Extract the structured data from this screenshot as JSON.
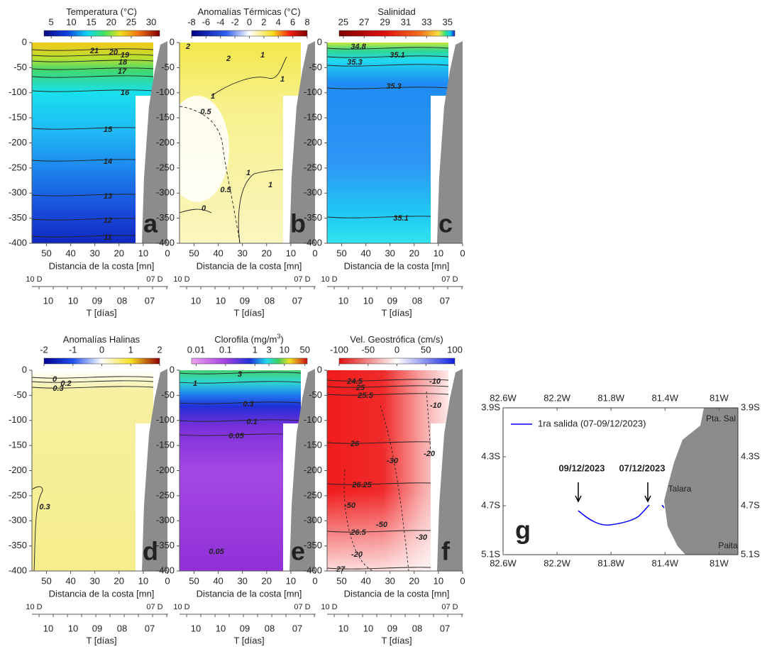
{
  "chart_data": [
    {
      "type": "contour",
      "letter": "a",
      "title": "Temperatura (°C)",
      "colorbar_ticks": [
        5,
        10,
        15,
        20,
        25,
        30
      ],
      "colorbar_lim": [
        3.2,
        32.1
      ],
      "contour_labels": [
        21,
        20,
        19,
        18,
        17,
        16,
        15,
        14,
        13,
        12,
        11
      ],
      "yticks": [
        0,
        -50,
        -100,
        -150,
        -200,
        -250,
        -300,
        -350,
        -400
      ],
      "ylim": [
        -400,
        0
      ],
      "xticks": [
        50,
        40,
        30,
        20,
        10,
        0
      ],
      "xlim": [
        56,
        0
      ],
      "xlabel": "Distancia de la costa [mn]",
      "time_start": "10 D",
      "time_end": "07 D",
      "time_ticks": [
        "10",
        "10",
        "09",
        "08",
        "07"
      ],
      "time_label": "T [días]"
    },
    {
      "type": "contour",
      "letter": "b",
      "title": "Anomalías Térmicas (°C)",
      "colorbar_ticks": [
        -8,
        -6,
        -4,
        -2,
        0,
        2,
        4,
        6,
        8
      ],
      "colorbar_lim": [
        -8,
        8
      ],
      "contour_labels": [
        2,
        2,
        1,
        1,
        1,
        0.5,
        1,
        1,
        0.5,
        0
      ],
      "yticks": [
        0,
        -50,
        -100,
        -150,
        -200,
        -250,
        -300,
        -350,
        -400
      ],
      "ylim": [
        -400,
        0
      ],
      "xticks": [
        50,
        40,
        30,
        20,
        10,
        0
      ],
      "xlim": [
        56,
        0
      ],
      "xlabel": "Distancia de la costa [mn]",
      "time_start": "10 D",
      "time_end": "07 D",
      "time_ticks": [
        "10",
        "10",
        "09",
        "08",
        "07"
      ],
      "time_label": "T [días]"
    },
    {
      "type": "contour",
      "letter": "c",
      "title": "Salinidad",
      "colorbar_ticks": [
        25,
        27,
        29,
        31,
        33,
        35
      ],
      "colorbar_lim": [
        24.6,
        35.7
      ],
      "contour_labels": [
        34.8,
        35.1,
        35.3,
        35.3,
        35.1
      ],
      "yticks": [
        0,
        -50,
        -100,
        -150,
        -200,
        -250,
        -300,
        -350,
        -400
      ],
      "ylim": [
        -400,
        0
      ],
      "xticks": [
        50,
        40,
        30,
        20,
        10,
        0
      ],
      "xlim": [
        56,
        0
      ],
      "xlabel": "Distancia de la costa [mn]",
      "time_start": "10 D",
      "time_end": "07 D",
      "time_ticks": [
        "10",
        "10",
        "09",
        "08",
        "07"
      ],
      "time_label": "T [días]"
    },
    {
      "type": "contour",
      "letter": "d",
      "title": "Anomalías Halinas",
      "colorbar_ticks": [
        -2,
        -1,
        0,
        1,
        2
      ],
      "colorbar_lim": [
        -2,
        2
      ],
      "contour_labels": [
        0,
        0.2,
        0.3,
        0.3
      ],
      "yticks": [
        0,
        -50,
        -100,
        -150,
        -200,
        -250,
        -300,
        -350,
        -400
      ],
      "ylim": [
        -400,
        0
      ],
      "xticks": [
        50,
        40,
        30,
        20,
        10,
        0
      ],
      "xlim": [
        56,
        0
      ],
      "xlabel": "Distancia de la costa [mn]",
      "time_start": "10 D",
      "time_end": "07 D",
      "time_ticks": [
        "10",
        "10",
        "09",
        "08",
        "07"
      ],
      "time_label": "T [días]"
    },
    {
      "type": "contour",
      "letter": "e",
      "title": "Clorofila (mg/m",
      "title_sup": "3",
      "title_end": ")",
      "colorbar_ticks": [
        0.01,
        0.1,
        1,
        3,
        10,
        50
      ],
      "colorbar_lim": [
        0.007,
        60
      ],
      "colorbar_log": true,
      "contour_labels": [
        3,
        1,
        0.3,
        0.1,
        0.05,
        0.05
      ],
      "yticks": [
        0,
        -50,
        -100,
        -150,
        -200,
        -250,
        -300,
        -350,
        -400
      ],
      "ylim": [
        -400,
        0
      ],
      "xticks": [
        50,
        40,
        30,
        20,
        10,
        0
      ],
      "xlim": [
        56,
        0
      ],
      "xlabel": "Distancia de la costa [mn]",
      "time_start": "10 D",
      "time_end": "07 D",
      "time_ticks": [
        "10",
        "10",
        "09",
        "08",
        "07"
      ],
      "time_label": "T [días]"
    },
    {
      "type": "contour",
      "letter": "f",
      "title": "Vel. Geostrófica (cm/s)",
      "colorbar_ticks": [
        -100,
        -50,
        0,
        50,
        100
      ],
      "colorbar_lim": [
        -100,
        100
      ],
      "contour_labels": [
        24.5,
        25,
        25.5,
        26,
        26.25,
        26.5,
        27,
        -10,
        -10,
        -30,
        -20,
        -50,
        -50,
        -30,
        -20
      ],
      "yticks": [
        0,
        -50,
        -100,
        -150,
        -200,
        -250,
        -300,
        -350,
        -400
      ],
      "ylim": [
        -400,
        0
      ],
      "xticks": [
        50,
        40,
        30,
        20,
        10,
        0
      ],
      "xlim": [
        56,
        0
      ],
      "xlabel": "Distancia de la costa [mn]",
      "time_start": "10 D",
      "time_end": "07 D",
      "time_ticks": [
        "10",
        "10",
        "09",
        "08",
        "07"
      ],
      "time_label": "T [días]"
    },
    {
      "type": "map",
      "letter": "g",
      "xticks": [
        {
          "value": 82.6,
          "label": "82.6W"
        },
        {
          "value": 82.2,
          "label": "82.2W"
        },
        {
          "value": 81.8,
          "label": "81.8W"
        },
        {
          "value": 81.4,
          "label": "81.4W"
        },
        {
          "value": 81,
          "label": "81W"
        }
      ],
      "xlim": [
        82.6,
        80.86
      ],
      "yticks": [
        {
          "value": 3.9,
          "label": "3.9S"
        },
        {
          "value": 4.3,
          "label": "4.3S"
        },
        {
          "value": 4.7,
          "label": "4.7S"
        },
        {
          "value": 5.1,
          "label": "5.1S"
        }
      ],
      "ylim": [
        3.9,
        5.1
      ],
      "series": [
        {
          "name": "1ra salida (07-09/12/2023)",
          "color": "#0000ff"
        }
      ],
      "annotations": [
        "09/12/2023",
        "07/12/2023"
      ],
      "places": [
        "Pta. Sal",
        "Talara",
        "Paita"
      ]
    }
  ]
}
